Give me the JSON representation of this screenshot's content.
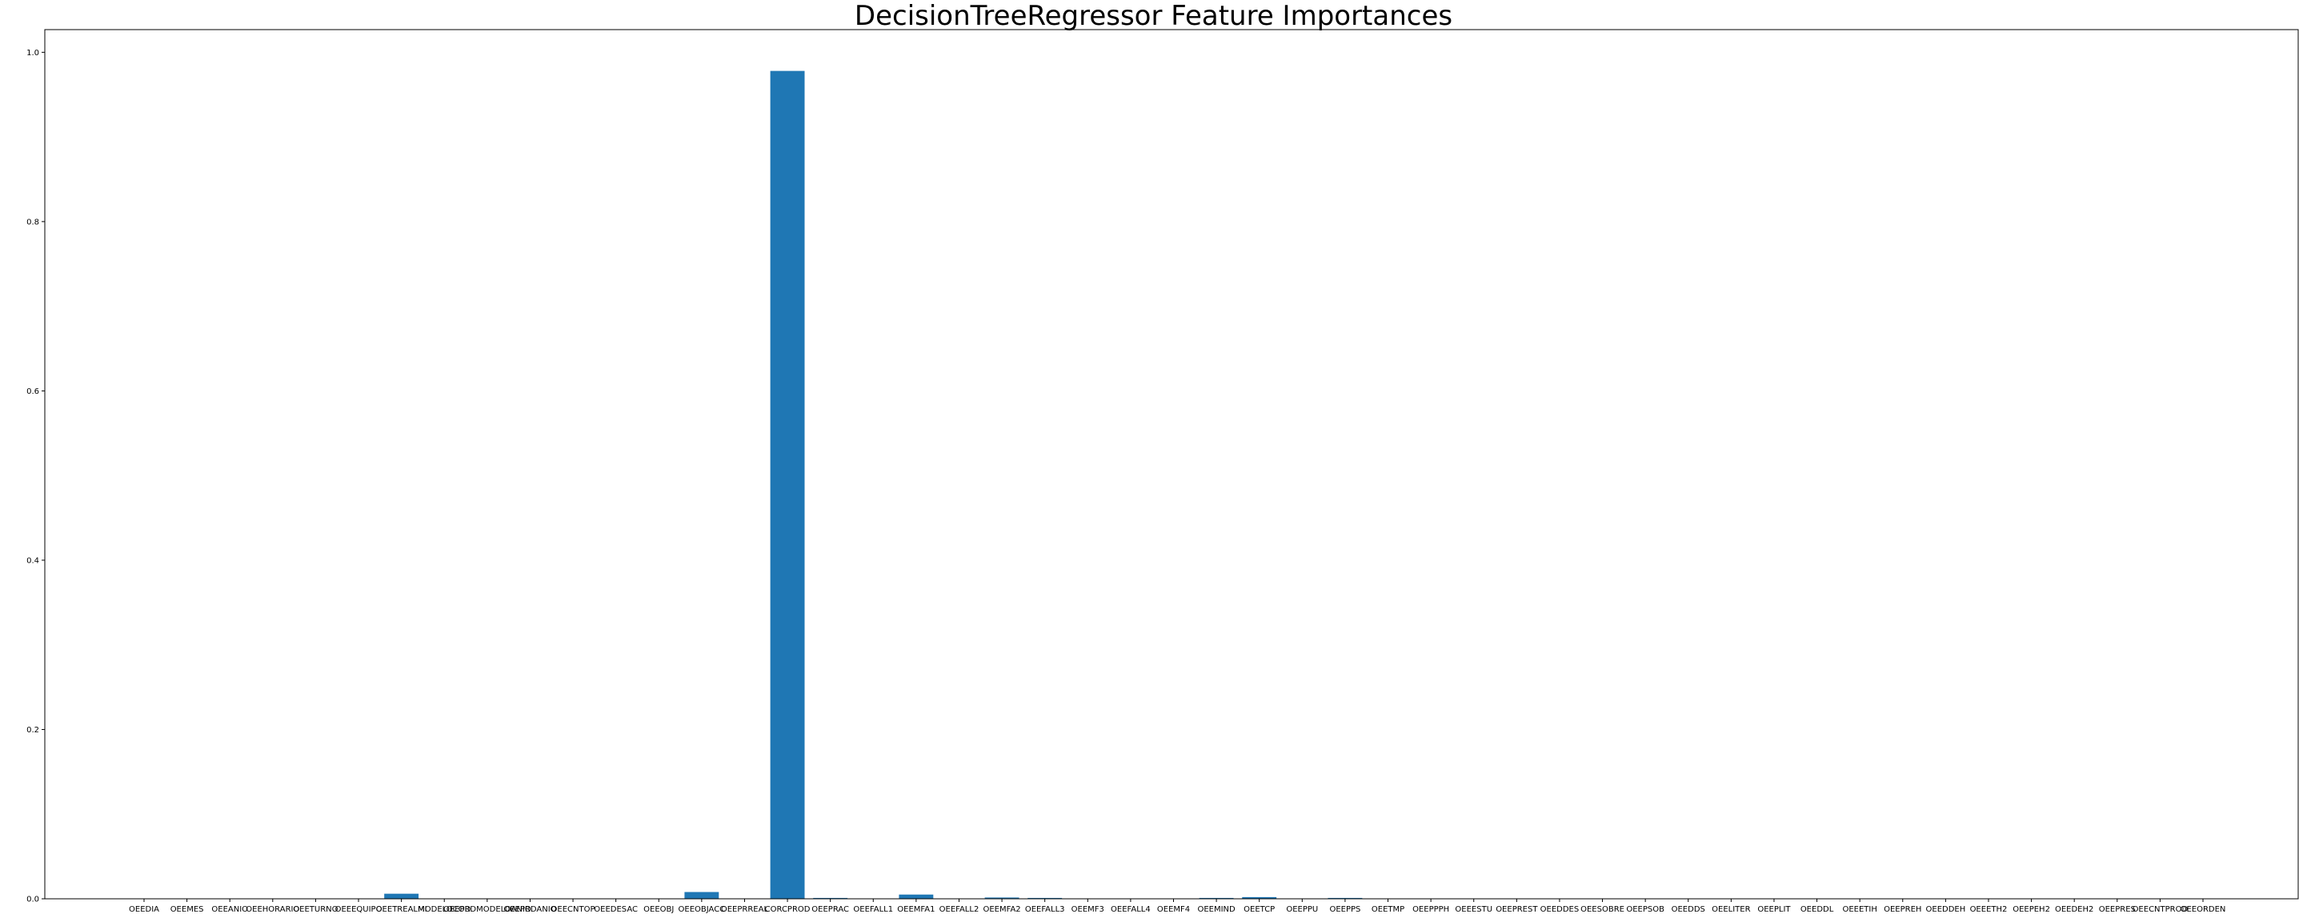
{
  "chart_data": {
    "type": "bar",
    "title": "DecisionTreeRegressor Feature Importances",
    "xlabel": "",
    "ylabel": "",
    "ylim": [
      0,
      1.0
    ],
    "yticks": [
      "0.0",
      "0.2",
      "0.4",
      "0.6",
      "0.8",
      "1.0"
    ],
    "grid": false,
    "bar_color": "#1f77b4",
    "categories": [
      "OEEDIA",
      "OEEMES",
      "OEEANIO",
      "OEEHORARIO",
      "OEETURNO",
      "OEEEQUIPO",
      "OEETREALMI",
      "MODELOCOD",
      "OEEPRDMODELOANIO",
      "OEEPRDANIO",
      "OEECNTOP",
      "OEEDESAC",
      "OEEOBJ",
      "OEEOBJACC",
      "OEEPRREAL",
      "CORCPROD",
      "OEEPRAC",
      "OEEFALL1",
      "OEEMFA1",
      "OEEFALL2",
      "OEEMFA2",
      "OEEFALL3",
      "OEEMF3",
      "OEEFALL4",
      "OEEMF4",
      "OEEMIND",
      "OEETCP",
      "OEEPPU",
      "OEEPPS",
      "OEETMP",
      "OEEPPPH",
      "OEEESTU",
      "OEEPREST",
      "OEEDDES",
      "OEESOBRE",
      "OEEPSOB",
      "OEEDDS",
      "OEELITER",
      "OEEPLIT",
      "OEEDDL",
      "OEEETIH",
      "OEEPREH",
      "OEEDDEH",
      "OEEETH2",
      "OEEPEH2",
      "OEEDEH2",
      "OEEPRES",
      "OEECNTPROD",
      "OEEORDEN"
    ],
    "values": [
      0,
      0,
      0,
      0,
      0,
      0,
      0.006,
      0,
      0,
      0,
      0,
      0,
      0,
      0.008,
      0,
      0.978,
      0.001,
      0,
      0.005,
      0,
      0.0015,
      0.001,
      0,
      0,
      0,
      0.001,
      0.002,
      0,
      0.001,
      0,
      0,
      0,
      0,
      0,
      0,
      0,
      0,
      0,
      0,
      0,
      0,
      0,
      0,
      0,
      0,
      0,
      0,
      0,
      0
    ]
  }
}
